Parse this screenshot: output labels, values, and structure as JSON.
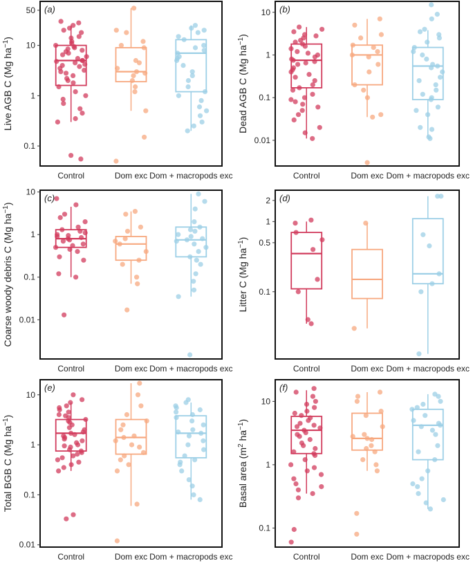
{
  "categories": [
    "Control",
    "Dom exc",
    "Dom + macropods exc"
  ],
  "colors": {
    "control": "#d13b5c",
    "dom": "#f7a87f",
    "macro": "#9ccfe6"
  },
  "chart_data": [
    {
      "type": "box",
      "panel": "(a)",
      "ylabel": "Live AGB C (Mg ha⁻¹)",
      "yscale": "log",
      "ylim": [
        0.04,
        75
      ],
      "yticks": [
        0.1,
        1,
        10,
        50
      ],
      "ytick_labels": [
        "0.1",
        "1",
        "10",
        "50"
      ],
      "categories": [
        "Control",
        "Dom exc",
        "Dom + macropods exc"
      ],
      "boxes": [
        {
          "q1": 1.6,
          "median": 5,
          "q3": 10,
          "whisker_low": 0.3,
          "whisker_high": 25
        },
        {
          "q1": 1.9,
          "median": 3,
          "q3": 9,
          "whisker_low": 0.5,
          "whisker_high": 55
        },
        {
          "q1": 1.2,
          "median": 7,
          "q3": 13,
          "whisker_low": 0.2,
          "whisker_high": 25
        }
      ],
      "points": [
        [
          30,
          28,
          25,
          22,
          20,
          18,
          15,
          14,
          12,
          11,
          10,
          9.5,
          9,
          8.5,
          8,
          7.5,
          7,
          6.5,
          6,
          5.5,
          5,
          5,
          4.8,
          4.5,
          4.2,
          4,
          3.8,
          3.5,
          3.2,
          3,
          2.8,
          2.5,
          2.2,
          2,
          1.8,
          1.5,
          1.2,
          1,
          0.85,
          0.7,
          0.55,
          0.45,
          0.35,
          0.3,
          0.065,
          0.055
        ],
        [
          55,
          20,
          18,
          12,
          10,
          9,
          5,
          4.5,
          3.5,
          3,
          2.8,
          2.5,
          2,
          1.5,
          1.2,
          0.5,
          0.15,
          0.05
        ],
        [
          25,
          22,
          20,
          18,
          15,
          13,
          10,
          9,
          8,
          7,
          6,
          5.5,
          5,
          4,
          3,
          2.5,
          2,
          1.5,
          1.2,
          1,
          0.8,
          0.6,
          0.5,
          0.4,
          0.3,
          0.25,
          0.2
        ]
      ]
    },
    {
      "type": "box",
      "panel": "(b)",
      "ylabel": "Dead AGB C (Mg ha⁻¹)",
      "yscale": "log",
      "ylim": [
        0.0025,
        18
      ],
      "yticks": [
        0.01,
        0.1,
        1,
        10
      ],
      "ytick_labels": [
        "0.01",
        "0.1",
        "1",
        "10"
      ],
      "categories": [
        "Control",
        "Dom exc",
        "Dom + macropods exc"
      ],
      "boxes": [
        {
          "q1": 0.17,
          "median": 0.75,
          "q3": 1.8,
          "whisker_low": 0.011,
          "whisker_high": 4.5
        },
        {
          "q1": 0.2,
          "median": 1.0,
          "q3": 1.7,
          "whisker_low": 0.035,
          "whisker_high": 7
        },
        {
          "q1": 0.09,
          "median": 0.55,
          "q3": 1.5,
          "whisker_low": 0.012,
          "whisker_high": 3.8
        }
      ],
      "points": [
        [
          4.5,
          4,
          3.5,
          3,
          2.8,
          2.5,
          2.2,
          2,
          1.8,
          1.6,
          1.4,
          1.2,
          1.1,
          1,
          0.9,
          0.8,
          0.75,
          0.7,
          0.65,
          0.6,
          0.5,
          0.45,
          0.4,
          0.35,
          0.3,
          0.25,
          0.2,
          0.17,
          0.15,
          0.12,
          0.1,
          0.09,
          0.08,
          0.07,
          0.06,
          0.05,
          0.04,
          0.03,
          0.02,
          0.015,
          0.011
        ],
        [
          7,
          5,
          3,
          2.5,
          1.7,
          1.5,
          1.2,
          1,
          0.9,
          0.6,
          0.4,
          0.2,
          0.15,
          0.1,
          0.04,
          0.035,
          0.003
        ],
        [
          15,
          9,
          7,
          4,
          3.5,
          3,
          2.5,
          2,
          1.5,
          1.2,
          1,
          0.8,
          0.6,
          0.55,
          0.5,
          0.4,
          0.3,
          0.25,
          0.2,
          0.15,
          0.12,
          0.1,
          0.09,
          0.06,
          0.05,
          0.04,
          0.02,
          0.018,
          0.012,
          0.011
        ]
      ]
    },
    {
      "type": "box",
      "panel": "(c)",
      "ylabel": "Coarse woody debris C (Mg ha⁻¹)",
      "yscale": "log",
      "ylim": [
        0.0012,
        11
      ],
      "yticks": [
        0.01,
        0.1,
        1,
        10
      ],
      "ytick_labels": [
        "0.01",
        "0.1",
        "1",
        "10"
      ],
      "categories": [
        "Control",
        "Dom exc",
        "Dom + macropods exc"
      ],
      "boxes": [
        {
          "q1": 0.5,
          "median": 0.8,
          "q3": 1.3,
          "whisker_low": 0.1,
          "whisker_high": 4.5
        },
        {
          "q1": 0.25,
          "median": 0.6,
          "q3": 0.9,
          "whisker_low": 0.07,
          "whisker_high": 3.5
        },
        {
          "q1": 0.3,
          "median": 0.75,
          "q3": 1.5,
          "whisker_low": 0.035,
          "whisker_high": 9
        }
      ],
      "points": [
        [
          7,
          5,
          3,
          2.5,
          2,
          1.5,
          1.3,
          1.2,
          1.1,
          1,
          0.95,
          0.9,
          0.85,
          0.8,
          0.75,
          0.7,
          0.6,
          0.55,
          0.5,
          0.45,
          0.4,
          0.3,
          0.25,
          0.12,
          0.1,
          0.013
        ],
        [
          3.5,
          3,
          1.5,
          1.2,
          0.8,
          0.7,
          0.6,
          0.4,
          0.25,
          0.2,
          0.1,
          0.07,
          0.017
        ],
        [
          9,
          6,
          4,
          2,
          1.5,
          1.3,
          1.2,
          1,
          0.9,
          0.8,
          0.75,
          0.7,
          0.6,
          0.5,
          0.4,
          0.3,
          0.25,
          0.2,
          0.12,
          0.08,
          0.05,
          0.035,
          0.0015
        ]
      ]
    },
    {
      "type": "box",
      "panel": "(d)",
      "ylabel": "Litter C (Mg ha⁻¹)",
      "yscale": "log",
      "ylim": [
        0.011,
        2.8
      ],
      "yticks": [
        0.1,
        0.5,
        1,
        2
      ],
      "ytick_labels": [
        "0.1",
        "0.5",
        "1",
        "2"
      ],
      "categories": [
        "Control",
        "Dom exc",
        "Dom + macropods exc"
      ],
      "boxes": [
        {
          "q1": 0.11,
          "median": 0.35,
          "q3": 0.7,
          "whisker_low": 0.035,
          "whisker_high": 1.0
        },
        {
          "q1": 0.08,
          "median": 0.15,
          "q3": 0.4,
          "whisker_low": 0.03,
          "whisker_high": 0.95
        },
        {
          "q1": 0.13,
          "median": 0.18,
          "q3": 1.1,
          "whisker_low": 0.013,
          "whisker_high": 2.3
        }
      ],
      "points": [
        [
          1.05,
          0.95,
          0.7,
          0.55,
          0.4,
          0.15,
          0.1,
          0.04,
          0.035
        ],
        [
          0.95,
          0.03
        ],
        [
          2.3,
          2.3,
          0.65,
          0.45,
          0.18,
          0.13,
          0.1,
          0.013
        ]
      ]
    },
    {
      "type": "box",
      "panel": "(e)",
      "ylabel": "Total BGB C (Mg ha⁻¹)",
      "yscale": "log",
      "ylim": [
        0.009,
        20
      ],
      "yticks": [
        0.01,
        0.1,
        1,
        10
      ],
      "ytick_labels": [
        "0.01",
        "0.1",
        "1",
        "10"
      ],
      "categories": [
        "Control",
        "Dom exc",
        "Dom + macropods exc"
      ],
      "boxes": [
        {
          "q1": 0.75,
          "median": 1.7,
          "q3": 3.2,
          "whisker_low": 0.3,
          "whisker_high": 7
        },
        {
          "q1": 0.65,
          "median": 1.4,
          "q3": 3.2,
          "whisker_low": 0.06,
          "whisker_high": 17
        },
        {
          "q1": 0.55,
          "median": 1.7,
          "q3": 3.8,
          "whisker_low": 0.08,
          "whisker_high": 7
        }
      ],
      "points": [
        [
          10,
          8,
          7,
          6,
          5.5,
          5,
          4.5,
          4,
          3.8,
          3.5,
          3.2,
          3,
          2.8,
          2.5,
          2.2,
          2,
          1.8,
          1.7,
          1.6,
          1.5,
          1.4,
          1.3,
          1.2,
          1.1,
          1,
          0.95,
          0.9,
          0.8,
          0.75,
          0.7,
          0.65,
          0.6,
          0.55,
          0.5,
          0.45,
          0.4,
          0.35,
          0.3,
          0.04,
          0.033
        ],
        [
          17,
          10,
          6,
          4,
          3,
          2.5,
          2,
          1.5,
          1.4,
          1.2,
          1,
          0.9,
          0.7,
          0.6,
          0.5,
          0.4,
          0.3,
          0.065,
          0.012
        ],
        [
          8,
          7,
          6,
          5.5,
          5,
          4.5,
          4,
          3.5,
          3,
          2.5,
          2,
          1.8,
          1.7,
          1.5,
          1.2,
          1,
          0.8,
          0.6,
          0.5,
          0.45,
          0.4,
          0.3,
          0.2,
          0.15,
          0.1,
          0.08
        ]
      ]
    },
    {
      "type": "box",
      "panel": "(f)",
      "ylabel": "Basal area (m² ha⁻¹)",
      "yscale": "log",
      "ylim": [
        0.05,
        22
      ],
      "yticks": [
        0.1,
        1,
        10
      ],
      "ytick_labels": [
        "0.1",
        "1",
        "10"
      ],
      "categories": [
        "Control",
        "Dom exc",
        "Dom + macropods exc"
      ],
      "boxes": [
        {
          "q1": 1.5,
          "median": 3.5,
          "q3": 5.8,
          "whisker_low": 0.35,
          "whisker_high": 15
        },
        {
          "q1": 1.7,
          "median": 2.6,
          "q3": 6.5,
          "whisker_low": 0.8,
          "whisker_high": 14
        },
        {
          "q1": 1.2,
          "median": 4.2,
          "q3": 7.5,
          "whisker_low": 0.2,
          "whisker_high": 13
        }
      ],
      "points": [
        [
          16,
          14,
          12,
          10,
          9,
          8,
          7,
          6.5,
          6,
          5.5,
          5,
          4.5,
          4.2,
          4,
          3.8,
          3.5,
          3.2,
          3,
          2.8,
          2.5,
          2.2,
          2,
          1.8,
          1.6,
          1.5,
          1.4,
          1.2,
          1,
          0.9,
          0.8,
          0.7,
          0.6,
          0.5,
          0.45,
          0.4,
          0.35,
          0.3,
          0.095,
          0.06
        ],
        [
          14,
          12,
          10,
          7,
          6,
          4,
          3,
          2.8,
          2.6,
          2.5,
          2,
          1.8,
          1.6,
          1.2,
          1,
          0.8,
          0.17,
          0.08
        ],
        [
          13,
          12,
          10,
          9,
          8,
          7.5,
          6,
          5,
          4.5,
          4.2,
          4,
          3.5,
          3,
          2,
          1.6,
          1.2,
          0.8,
          0.6,
          0.5,
          0.45,
          0.35,
          0.28,
          0.25,
          0.2
        ]
      ]
    }
  ]
}
